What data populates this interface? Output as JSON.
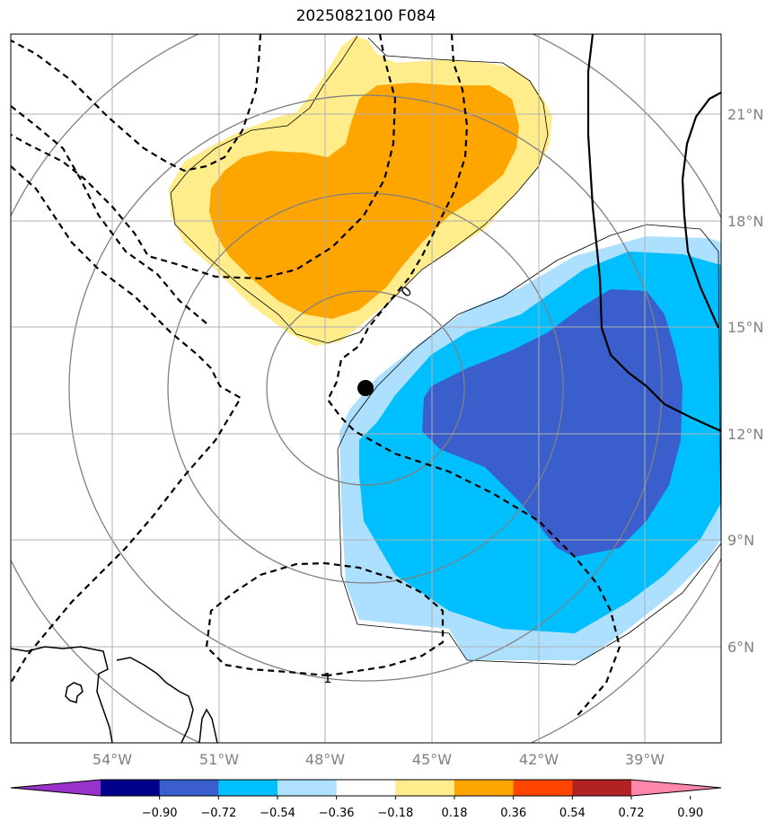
{
  "title": "2025082100 F084",
  "map": {
    "lon_labels": [
      "54°W",
      "51°W",
      "48°W",
      "45°W",
      "42°W",
      "39°W"
    ],
    "lat_labels": [
      "21°N",
      "18°N",
      "15°N",
      "12°N",
      "9°N",
      "6°N"
    ],
    "contour_labels": {
      "zero": "0",
      "one": "1"
    },
    "storm_center": {
      "lat": "13.3°N",
      "lon": "47.0°W"
    }
  },
  "colorbar": {
    "ticks": [
      "−0.90",
      "−0.72",
      "−0.54",
      "−0.36",
      "−0.18",
      "0.18",
      "0.36",
      "0.54",
      "0.72",
      "0.90"
    ],
    "colors": [
      "#9932CC",
      "#00008B",
      "#3A5FCD",
      "#00BFFF",
      "#B0E0FF",
      "#FFFFFF",
      "#FFEC8B",
      "#FFA500",
      "#FF4500",
      "#B22222",
      "#FF88AA"
    ]
  },
  "colors": {
    "light_blue": "#ADDFFF",
    "mid_blue": "#00BFFF",
    "dark_blue": "#3A5FCD",
    "light_yellow": "#FFEC8B",
    "orange": "#FFA500",
    "grid": "#b0b0b0",
    "rings": "#808080"
  }
}
